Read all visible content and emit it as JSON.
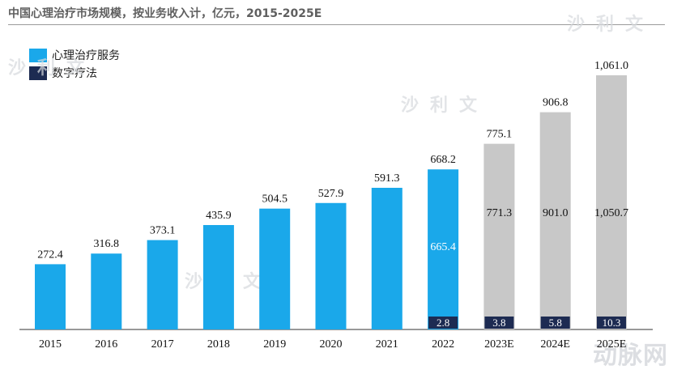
{
  "title": "中国心理治疗市场规模，按业务收入计，亿元，2015-2025E",
  "legend": [
    {
      "label": "心理治疗服务",
      "color": "#1aa8ea"
    },
    {
      "label": "数字疗法",
      "color": "#1d2b52"
    }
  ],
  "watermarks": {
    "cn": "沙利文",
    "brand": "动脉网"
  },
  "colors": {
    "actual": "#1aa8ea",
    "forecast": "#c8c8c8",
    "digital": "#1d2b52"
  },
  "chart_data": {
    "type": "bar",
    "stacked": true,
    "title": "中国心理治疗市场规模，按业务收入计，亿元，2015-2025E",
    "xlabel": "",
    "ylabel": "亿元",
    "ylim": [
      0,
      1100
    ],
    "categories": [
      "2015",
      "2016",
      "2017",
      "2018",
      "2019",
      "2020",
      "2021",
      "2022",
      "2023E",
      "2024E",
      "2025E"
    ],
    "totals": [
      272.4,
      316.8,
      373.1,
      435.9,
      504.5,
      527.9,
      591.3,
      668.2,
      775.1,
      906.8,
      1061.0
    ],
    "total_labels": [
      "272.4",
      "316.8",
      "373.1",
      "435.9",
      "504.5",
      "527.9",
      "591.3",
      "668.2",
      "775.1",
      "906.8",
      "1,061.0"
    ],
    "forecast_from_index": 8,
    "series": [
      {
        "name": "心理治疗服务",
        "values": [
          272.4,
          316.8,
          373.1,
          435.9,
          504.5,
          527.9,
          591.3,
          665.4,
          771.3,
          901.0,
          1050.7
        ],
        "segment_labels": [
          null,
          null,
          null,
          null,
          null,
          null,
          null,
          "665.4",
          "771.3",
          "901.0",
          "1,050.7"
        ]
      },
      {
        "name": "数字疗法",
        "values": [
          0,
          0,
          0,
          0,
          0,
          0,
          0,
          2.8,
          3.8,
          5.8,
          10.3
        ],
        "segment_labels": [
          null,
          null,
          null,
          null,
          null,
          null,
          null,
          "2.8",
          "3.8",
          "5.8",
          "10.3"
        ]
      }
    ],
    "grid": false,
    "legend_position": "top-left"
  }
}
